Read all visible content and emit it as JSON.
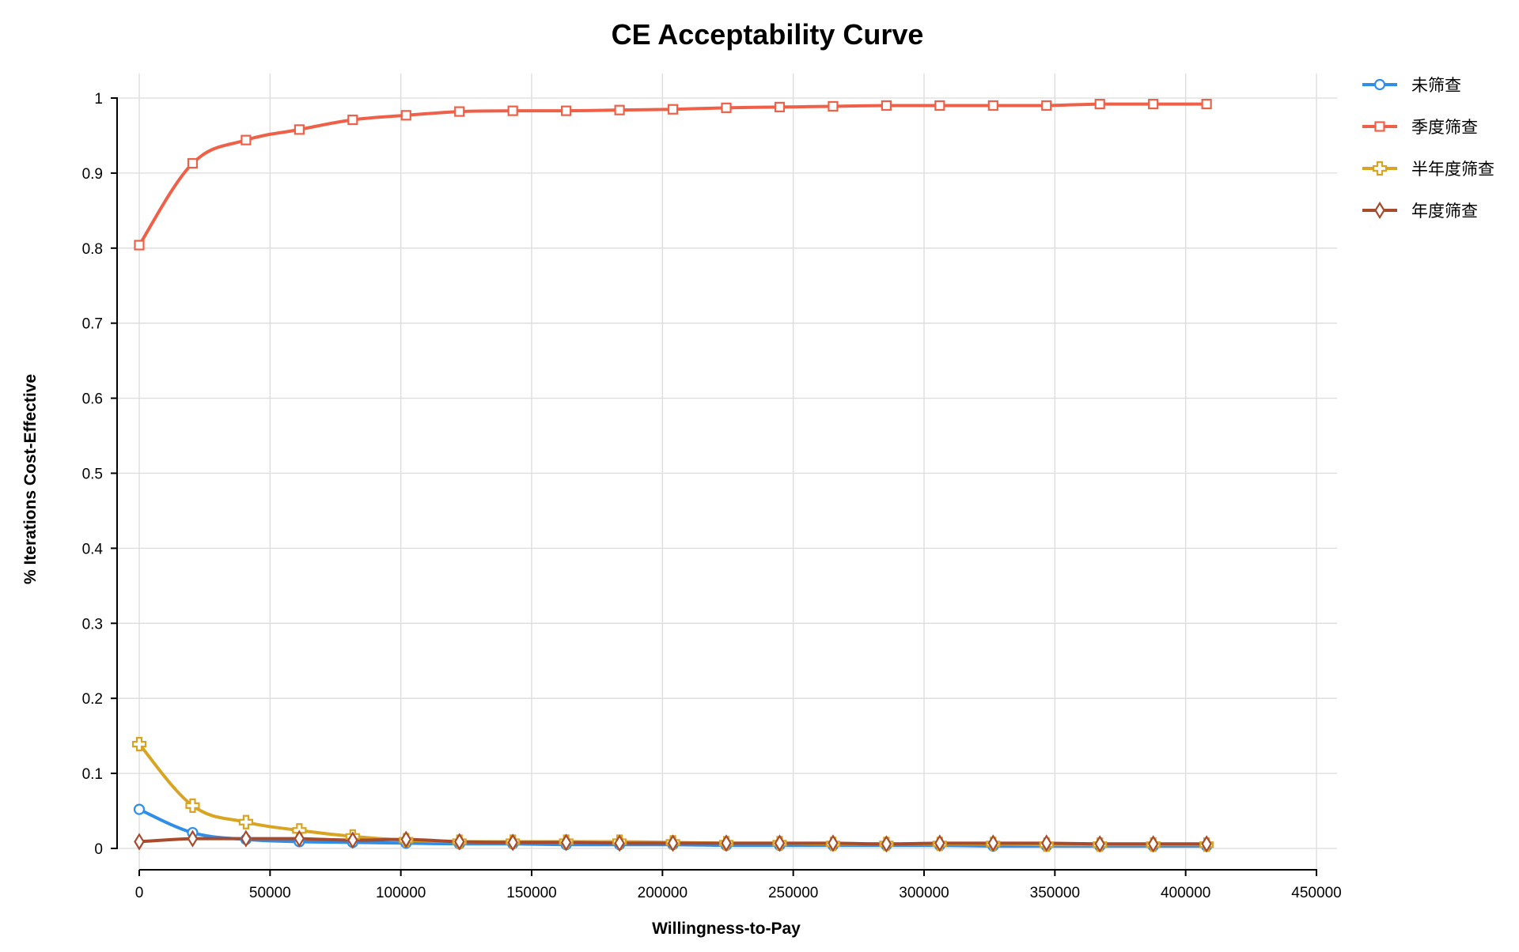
{
  "chart_data": {
    "type": "line",
    "title": "CE Acceptability Curve",
    "xlabel": "Willingness-to-Pay",
    "ylabel": "% Iterations Cost-Effective",
    "xlim": [
      0,
      450000
    ],
    "ylim": [
      0,
      1
    ],
    "x_ticks": [
      0,
      50000,
      100000,
      150000,
      200000,
      250000,
      300000,
      350000,
      400000,
      450000
    ],
    "x_tick_labels": [
      "0",
      "50000",
      "100000",
      "150000",
      "200000",
      "250000",
      "300000",
      "350000",
      "400000",
      "450000"
    ],
    "y_ticks": [
      0,
      0.1,
      0.2,
      0.3,
      0.4,
      0.5,
      0.6,
      0.7,
      0.8,
      0.9,
      1
    ],
    "y_tick_labels": [
      "0",
      "0.1",
      "0.2",
      "0.3",
      "0.4",
      "0.5",
      "0.6",
      "0.7",
      "0.8",
      "0.9",
      "1"
    ],
    "grid": true,
    "smooth": true,
    "legend_position": "top-right",
    "x": [
      0,
      20400,
      40800,
      61200,
      81600,
      102000,
      122400,
      142800,
      163200,
      183600,
      204000,
      224400,
      244800,
      265200,
      285600,
      306000,
      326400,
      346800,
      367200,
      387600,
      408000
    ],
    "series": [
      {
        "name": "未筛查",
        "color": "#2f8ee8",
        "marker": "circle",
        "values": [
          0.052,
          0.021,
          0.012,
          0.009,
          0.008,
          0.007,
          0.006,
          0.006,
          0.005,
          0.005,
          0.005,
          0.004,
          0.004,
          0.004,
          0.004,
          0.004,
          0.003,
          0.003,
          0.003,
          0.003,
          0.003
        ]
      },
      {
        "name": "季度筛查",
        "color": "#ee6048",
        "marker": "square",
        "values": [
          0.804,
          0.913,
          0.944,
          0.958,
          0.971,
          0.977,
          0.982,
          0.983,
          0.983,
          0.984,
          0.985,
          0.987,
          0.988,
          0.989,
          0.99,
          0.99,
          0.99,
          0.99,
          0.992,
          0.992,
          0.992
        ]
      },
      {
        "name": "半年度筛查",
        "color": "#d8a421",
        "marker": "cross",
        "values": [
          0.139,
          0.057,
          0.035,
          0.024,
          0.016,
          0.011,
          0.009,
          0.009,
          0.009,
          0.009,
          0.008,
          0.007,
          0.007,
          0.006,
          0.006,
          0.006,
          0.006,
          0.005,
          0.005,
          0.005,
          0.005
        ]
      },
      {
        "name": "年度筛查",
        "color": "#a84b2c",
        "marker": "diamond",
        "values": [
          0.009,
          0.013,
          0.013,
          0.013,
          0.011,
          0.012,
          0.009,
          0.008,
          0.008,
          0.007,
          0.007,
          0.007,
          0.007,
          0.007,
          0.006,
          0.007,
          0.007,
          0.007,
          0.006,
          0.006,
          0.006
        ]
      }
    ]
  }
}
